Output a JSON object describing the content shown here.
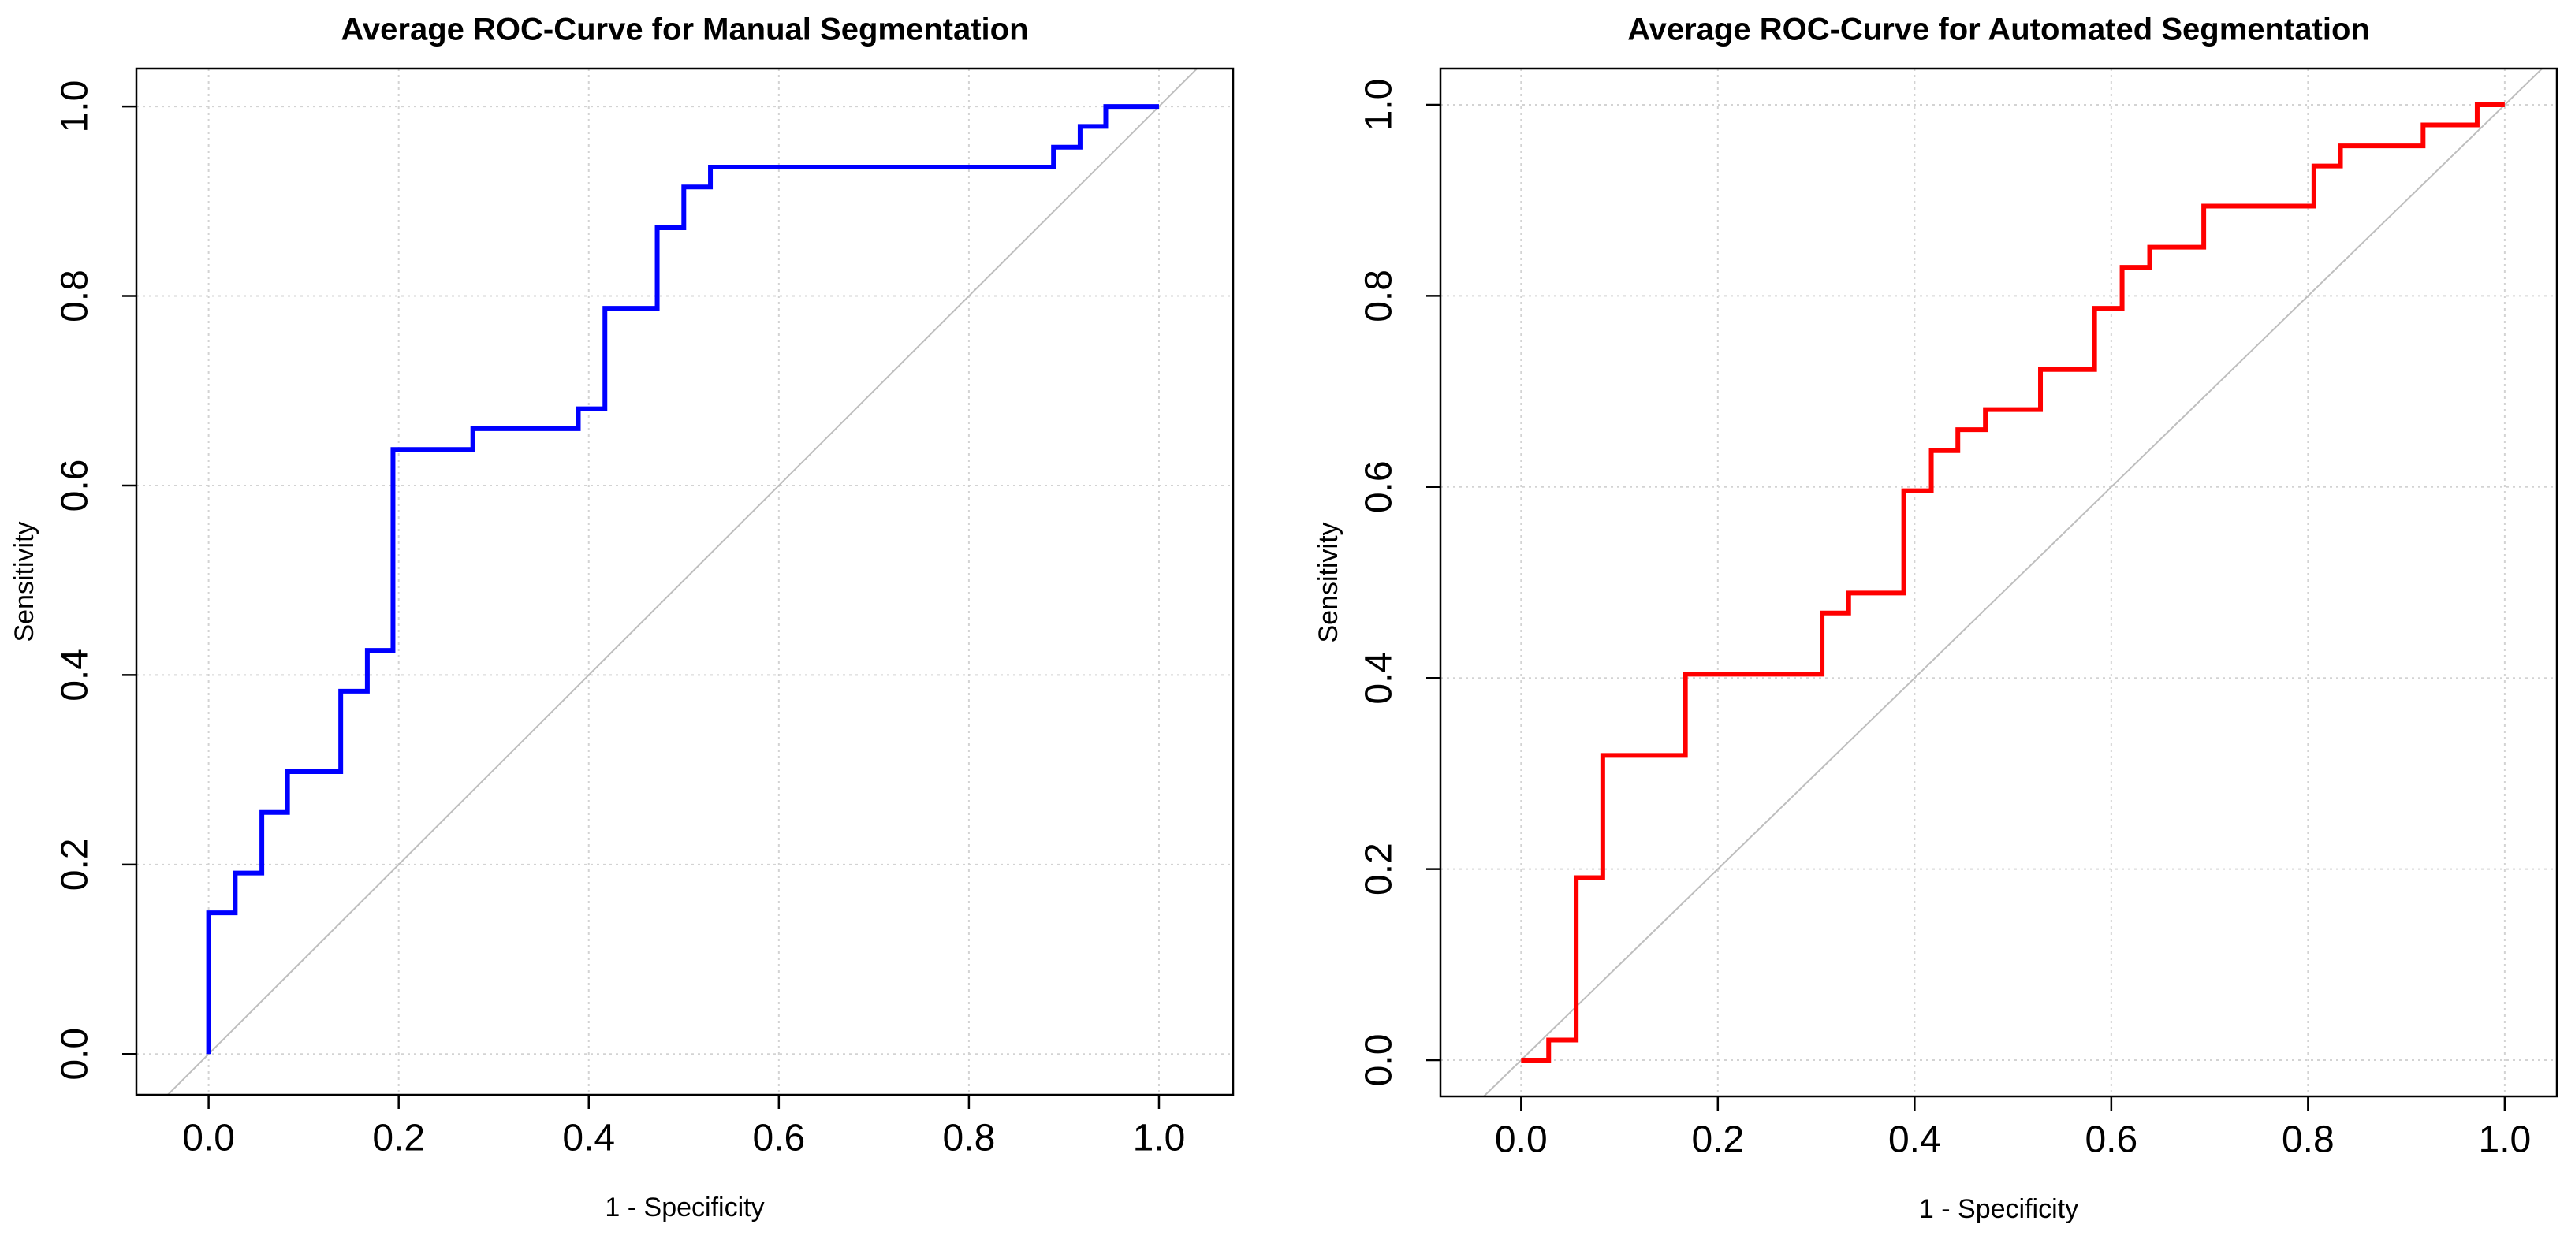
{
  "chart_data": [
    {
      "type": "line",
      "title": "Average ROC-Curve for Manual Segmentation",
      "xlabel": "1 - Specificity",
      "ylabel": "Sensitivity",
      "color": "#0000ff",
      "grid": true,
      "x": [
        0,
        0,
        0.028,
        0.028,
        0.056,
        0.056,
        0.083,
        0.083,
        0.139,
        0.139,
        0.167,
        0.167,
        0.194,
        0.194,
        0.278,
        0.278,
        0.389,
        0.389,
        0.417,
        0.417,
        0.472,
        0.472,
        0.5,
        0.5,
        0.528,
        0.528,
        0.889,
        0.889,
        0.917,
        0.917,
        0.944,
        0.944,
        1
      ],
      "values": [
        0,
        0.149,
        0.149,
        0.191,
        0.191,
        0.255,
        0.255,
        0.298,
        0.298,
        0.383,
        0.383,
        0.426,
        0.426,
        0.638,
        0.638,
        0.66,
        0.66,
        0.681,
        0.681,
        0.787,
        0.787,
        0.872,
        0.872,
        0.915,
        0.915,
        0.936,
        0.936,
        0.957,
        0.957,
        0.979,
        0.979,
        1,
        1
      ],
      "xlim": [
        -0.076,
        1.078
      ],
      "ylim": [
        -0.043,
        1.04
      ],
      "xticks": [
        {
          "value": 0,
          "label": "0.0"
        },
        0.2,
        0.4,
        0.6,
        0.8,
        {
          "value": 1,
          "label": "1.0"
        }
      ],
      "yticks": [
        {
          "value": 0,
          "label": "0.0"
        },
        0.2,
        0.4,
        0.6,
        0.8,
        {
          "value": 1,
          "label": "1.0"
        }
      ]
    },
    {
      "type": "line",
      "title": "Average ROC-Curve for Automated Segmentation",
      "xlabel": "1 - Specificity",
      "ylabel": "Sensitivity",
      "color": "#ff0000",
      "grid": true,
      "x": [
        0,
        0.028,
        0.028,
        0.056,
        0.056,
        0.083,
        0.083,
        0.167,
        0.167,
        0.306,
        0.306,
        0.333,
        0.333,
        0.389,
        0.389,
        0.417,
        0.417,
        0.444,
        0.444,
        0.472,
        0.472,
        0.528,
        0.528,
        0.583,
        0.583,
        0.611,
        0.611,
        0.639,
        0.639,
        0.694,
        0.694,
        0.806,
        0.806,
        0.833,
        0.833,
        0.917,
        0.917,
        0.972,
        0.972,
        1
      ],
      "values": [
        0,
        0,
        0.021,
        0.021,
        0.191,
        0.191,
        0.319,
        0.319,
        0.404,
        0.404,
        0.468,
        0.468,
        0.489,
        0.489,
        0.596,
        0.596,
        0.638,
        0.638,
        0.66,
        0.66,
        0.681,
        0.681,
        0.723,
        0.723,
        0.787,
        0.787,
        0.83,
        0.83,
        0.851,
        0.851,
        0.894,
        0.894,
        0.936,
        0.936,
        0.957,
        0.957,
        0.979,
        0.979,
        1,
        1
      ],
      "xlim": [
        -0.082,
        1.053
      ],
      "ylim": [
        -0.038,
        1.038
      ],
      "xticks": [
        {
          "value": 0,
          "label": "0.0"
        },
        0.2,
        0.4,
        0.6,
        0.8,
        {
          "value": 1,
          "label": "1.0"
        }
      ],
      "yticks": [
        {
          "value": 0,
          "label": "0.0"
        },
        0.2,
        0.4,
        0.6,
        0.8,
        {
          "value": 1,
          "label": "1.0"
        }
      ]
    }
  ]
}
